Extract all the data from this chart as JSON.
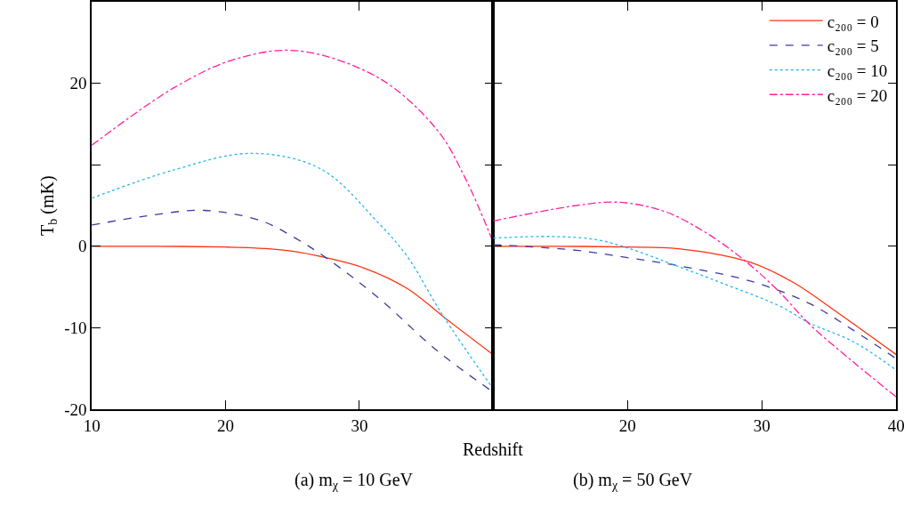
{
  "chart_data": [
    {
      "type": "line",
      "title": "(a) m$_{χ}$ = 10 GeV",
      "xlabel": "Redshift",
      "ylabel": "T$_{b}$ (mK)",
      "xlim": [
        10,
        40
      ],
      "ylim": [
        -20,
        30
      ],
      "xticks": [
        10,
        20,
        30
      ],
      "yticks": [
        -20,
        -10,
        0,
        {
          "value": 10,
          "label": null
        },
        20
      ],
      "legend": false,
      "series": [
        {
          "color": "#ff3010",
          "line_style": "solid",
          "x": [
            10,
            15,
            20,
            22,
            25,
            27.5,
            30.4,
            33.6,
            36.4,
            40
          ],
          "values": [
            0,
            0,
            -0.1,
            -0.2,
            -0.6,
            -1.4,
            -2.7,
            -5.2,
            -8.8,
            -13.3
          ]
        },
        {
          "color": "#3c3ca0",
          "line_style": "dashed",
          "x": [
            10,
            14,
            18.4,
            22.7,
            25,
            27.5,
            31.4,
            35.8,
            40
          ],
          "values": [
            2.6,
            3.7,
            4.4,
            3.1,
            1.2,
            -1.4,
            -6.3,
            -12.8,
            -17.9
          ]
        },
        {
          "color": "#20b8f0",
          "line_style": "dotted",
          "x": [
            10,
            16.2,
            21.9,
            27.1,
            31.4,
            33.6,
            36.2,
            40
          ],
          "values": [
            5.9,
            9.4,
            11.4,
            9.5,
            2.9,
            -1.3,
            -8.4,
            -17.5
          ]
        },
        {
          "color": "#ff20a0",
          "line_style": "dashdot",
          "x": [
            10,
            16.2,
            20.6,
            25.3,
            31.4,
            35.8,
            37.9,
            40
          ],
          "values": [
            12.4,
            19.5,
            22.9,
            24.0,
            20.7,
            14.3,
            8.4,
            0.5
          ]
        }
      ]
    },
    {
      "type": "line",
      "title": "(b) m$_{χ}$ = 50 GeV",
      "xlim": [
        10,
        40
      ],
      "ylim": [
        -20,
        30
      ],
      "xticks": [
        20,
        30,
        40
      ],
      "yticks": [
        -20,
        -10,
        0,
        10,
        20
      ],
      "legend": "top right",
      "tick_labels": "x",
      "series": [
        {
          "name": "c₂₀₀ = 0",
          "color": "#ff3010",
          "line_style": "solid",
          "x": [
            10,
            15,
            20,
            23.8,
            29.2,
            32.4,
            35.6,
            40
          ],
          "values": [
            0,
            0,
            -0.1,
            -0.3,
            -2.0,
            -4.5,
            -8.1,
            -13.3
          ]
        },
        {
          "name": "c₂₀₀ = 5",
          "color": "#3c3ca0",
          "line_style": "dashed",
          "x": [
            10,
            16.2,
            20,
            23.8,
            29.2,
            33.5,
            36.8,
            40
          ],
          "values": [
            0.2,
            -0.5,
            -1.4,
            -2.4,
            -4.3,
            -7.0,
            -10.3,
            -13.8
          ]
        },
        {
          "name": "c₂₀₀ = 10",
          "color": "#20b8f0",
          "line_style": "dotted",
          "x": [
            10,
            14.4,
            17.7,
            20,
            23.8,
            27,
            31.4,
            33.5,
            36.8,
            40
          ],
          "values": [
            1.0,
            1.2,
            0.8,
            -0.2,
            -2.5,
            -4.5,
            -7.4,
            -9.4,
            -11.7,
            -15.2
          ]
        },
        {
          "name": "c₂₀₀ = 20",
          "color": "#ff20a0",
          "line_style": "dashdot",
          "x": [
            10,
            16.2,
            19.3,
            22.7,
            25.9,
            28.9,
            31.3,
            33.5,
            36.8,
            40
          ],
          "values": [
            3.1,
            5.0,
            5.4,
            4.3,
            1.6,
            -2.0,
            -5.6,
            -9.5,
            -14.2,
            -18.5
          ]
        }
      ]
    }
  ]
}
